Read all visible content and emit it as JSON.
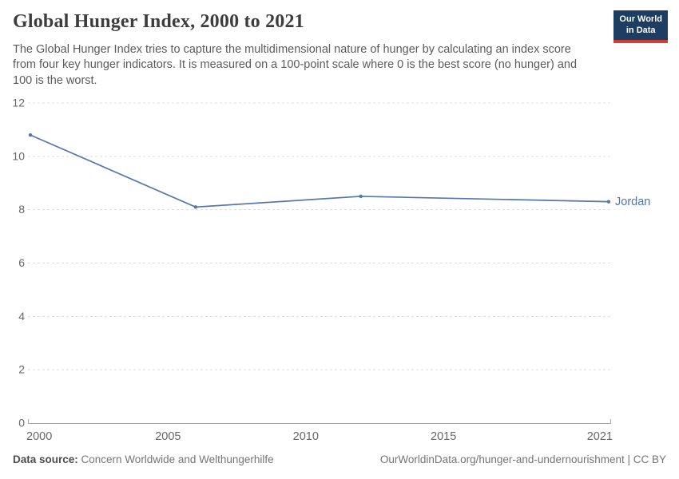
{
  "header": {
    "title": "Global Hunger Index, 2000 to 2021",
    "subtitle": "The Global Hunger Index tries to capture the multidimensional nature of hunger by calculating an index score from four key hunger indicators. It is measured on a 100-point scale where 0 is the best score (no hunger) and 100 is the worst."
  },
  "logo": {
    "line1": "Our World",
    "line2": "in Data"
  },
  "chart_data": {
    "type": "line",
    "title": "Global Hunger Index, 2000 to 2021",
    "x": [
      2000,
      2006,
      2012,
      2021
    ],
    "series": [
      {
        "name": "Jordan",
        "values": [
          10.8,
          8.1,
          8.5,
          8.3
        ]
      }
    ],
    "xlim": [
      2000,
      2021
    ],
    "ylim": [
      0,
      12
    ],
    "y_ticks": [
      0,
      2,
      4,
      6,
      8,
      10,
      12
    ],
    "x_ticks": [
      2000,
      2005,
      2010,
      2015,
      2021
    ],
    "xlabel": "",
    "ylabel": "",
    "grid": "horizontal-dashed",
    "legend": "entity-label-right-of-line"
  },
  "footer": {
    "source_label": "Data source:",
    "source_text": " Concern Worldwide and Welthungerhilfe",
    "link_text": "OurWorldinData.org/hunger-and-undernourishment | CC BY"
  },
  "colors": {
    "line": "#5677a9",
    "entity_label": "#4e73ad",
    "logo_bg": "#1d3d63",
    "logo_stripe": "#cf3f33",
    "grid": "#dcdcdc",
    "axis": "#a5a5a5",
    "tick_label": "#666666",
    "title": "#3d3d3d",
    "subtitle": "#5b5b5b",
    "footer": "#757575"
  }
}
